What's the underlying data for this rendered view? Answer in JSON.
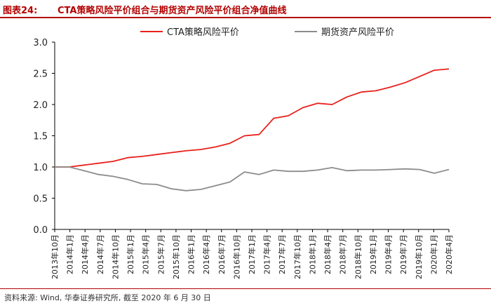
{
  "header": {
    "figure_label": "图表24:",
    "title": "CTA策略风险平价组合与期货资产风险平价组合净值曲线"
  },
  "footer": {
    "source": "资料来源: Wind, 华泰证券研究所, 截至 2020 年 6 月 30 日"
  },
  "colors": {
    "series1": "#e8201b",
    "series2": "#8c8c8c",
    "accent": "#b30000"
  },
  "chart_data": {
    "type": "line",
    "title": "",
    "xlabel": "",
    "ylabel": "",
    "ylim": [
      0,
      3
    ],
    "yticks": [
      "0.0",
      "0.5",
      "1.0",
      "1.5",
      "2.0",
      "2.5",
      "3.0"
    ],
    "x_ticks": [
      "2013年10月",
      "2014年1月",
      "2014年4月",
      "2014年7月",
      "2014年10月",
      "2015年1月",
      "2015年4月",
      "2015年7月",
      "2015年10月",
      "2016年1月",
      "2016年4月",
      "2016年7月",
      "2016年10月",
      "2017年1月",
      "2017年4月",
      "2017年7月",
      "2017年10月",
      "2018年1月",
      "2018年4月",
      "2018年7月",
      "2018年10月",
      "2019年1月",
      "2019年4月",
      "2019年7月",
      "2019年10月",
      "2020年1月",
      "2020年4月"
    ],
    "legend_position": "top",
    "grid": false,
    "series": [
      {
        "name": "CTA策略风险平价",
        "values": [
          1.0,
          1.0,
          1.03,
          1.06,
          1.09,
          1.15,
          1.17,
          1.2,
          1.23,
          1.26,
          1.28,
          1.32,
          1.38,
          1.5,
          1.52,
          1.78,
          1.82,
          1.95,
          2.02,
          2.0,
          2.12,
          2.2,
          2.22,
          2.28,
          2.35,
          2.45,
          2.55,
          2.57
        ]
      },
      {
        "name": "期货资产风险平价",
        "values": [
          1.0,
          1.0,
          0.94,
          0.88,
          0.85,
          0.8,
          0.73,
          0.72,
          0.65,
          0.62,
          0.64,
          0.7,
          0.76,
          0.92,
          0.88,
          0.95,
          0.93,
          0.93,
          0.95,
          0.99,
          0.94,
          0.95,
          0.95,
          0.96,
          0.97,
          0.96,
          0.9,
          0.96
        ]
      }
    ]
  }
}
